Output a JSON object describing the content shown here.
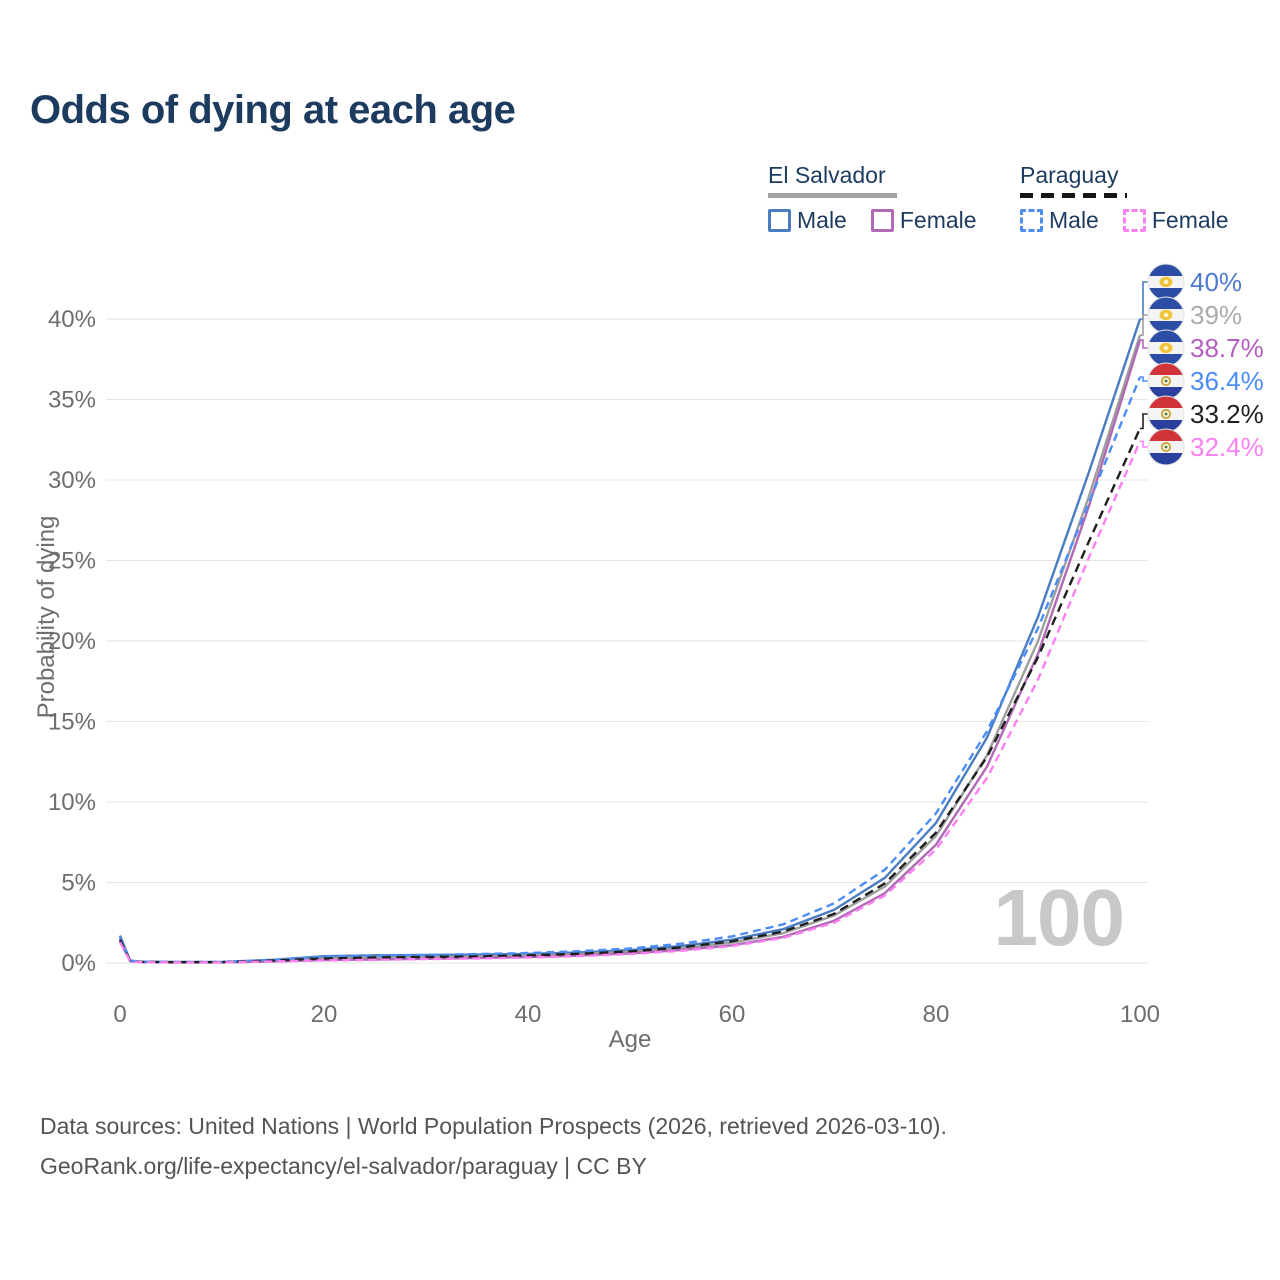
{
  "title": "Odds of dying at each age",
  "watermark": "100",
  "legend": {
    "groups": [
      {
        "label": "El Salvador",
        "line_color": "#a3a3a3",
        "line_style": "solid",
        "items": [
          {
            "label": "Male",
            "color": "#4a7cc2",
            "style": "solid"
          },
          {
            "label": "Female",
            "color": "#b069b5",
            "style": "solid"
          }
        ]
      },
      {
        "label": "Paraguay",
        "line_color": "#161616",
        "line_style": "dashed",
        "items": [
          {
            "label": "Male",
            "color": "#4d8df6",
            "style": "dashed"
          },
          {
            "label": "Female",
            "color": "#fb80f2",
            "style": "dashed"
          }
        ]
      }
    ]
  },
  "chart_data": {
    "type": "line",
    "title": "Odds of dying at each age",
    "xlabel": "Age",
    "ylabel": "Probability of dying",
    "xlim": [
      0,
      100
    ],
    "ylim_pct": [
      0,
      42
    ],
    "x_ticks": [
      0,
      20,
      40,
      60,
      80,
      100
    ],
    "y_ticks_pct": [
      0,
      5,
      10,
      15,
      20,
      25,
      30,
      35,
      40
    ],
    "grid": true,
    "legend_position": "top-right",
    "series": [
      {
        "id": "es-male",
        "country": "El Salvador",
        "series_key": "male",
        "color": "#4a7cc2",
        "dash": null,
        "end_value_pct": 40,
        "end_label": "40%",
        "label_color": "#4d79d0",
        "flag": "sv",
        "points": [
          [
            0,
            1.7
          ],
          [
            1,
            0.15
          ],
          [
            2,
            0.08
          ],
          [
            5,
            0.06
          ],
          [
            10,
            0.06
          ],
          [
            15,
            0.2
          ],
          [
            20,
            0.42
          ],
          [
            25,
            0.48
          ],
          [
            30,
            0.5
          ],
          [
            35,
            0.52
          ],
          [
            40,
            0.56
          ],
          [
            45,
            0.65
          ],
          [
            50,
            0.8
          ],
          [
            55,
            1.05
          ],
          [
            60,
            1.45
          ],
          [
            65,
            2.1
          ],
          [
            70,
            3.3
          ],
          [
            75,
            5.3
          ],
          [
            80,
            8.7
          ],
          [
            85,
            14.0
          ],
          [
            88,
            18.5
          ],
          [
            90,
            21.5
          ],
          [
            95,
            30.5
          ],
          [
            100,
            40
          ]
        ]
      },
      {
        "id": "es-all",
        "country": "El Salvador",
        "series_key": "all",
        "color": "#9e9e9e",
        "dash": null,
        "end_value_pct": 39,
        "end_label": "39%",
        "label_color": "#ababab",
        "flag": "sv",
        "points": [
          [
            0,
            1.5
          ],
          [
            1,
            0.13
          ],
          [
            2,
            0.07
          ],
          [
            5,
            0.05
          ],
          [
            10,
            0.05
          ],
          [
            15,
            0.15
          ],
          [
            20,
            0.3
          ],
          [
            25,
            0.36
          ],
          [
            30,
            0.38
          ],
          [
            35,
            0.41
          ],
          [
            40,
            0.46
          ],
          [
            45,
            0.55
          ],
          [
            50,
            0.7
          ],
          [
            55,
            0.92
          ],
          [
            60,
            1.27
          ],
          [
            65,
            1.85
          ],
          [
            70,
            2.95
          ],
          [
            75,
            4.75
          ],
          [
            80,
            7.9
          ],
          [
            85,
            12.9
          ],
          [
            90,
            20.0
          ],
          [
            95,
            29.0
          ],
          [
            100,
            39
          ]
        ]
      },
      {
        "id": "es-female",
        "country": "El Salvador",
        "series_key": "female",
        "color": "#b069b5",
        "dash": null,
        "end_value_pct": 38.7,
        "end_label": "38.7%",
        "label_color": "#b45ec0",
        "flag": "sv",
        "points": [
          [
            0,
            1.35
          ],
          [
            1,
            0.11
          ],
          [
            2,
            0.06
          ],
          [
            5,
            0.04
          ],
          [
            10,
            0.04
          ],
          [
            15,
            0.1
          ],
          [
            20,
            0.18
          ],
          [
            25,
            0.22
          ],
          [
            30,
            0.26
          ],
          [
            35,
            0.31
          ],
          [
            40,
            0.37
          ],
          [
            45,
            0.46
          ],
          [
            50,
            0.6
          ],
          [
            55,
            0.8
          ],
          [
            60,
            1.1
          ],
          [
            65,
            1.62
          ],
          [
            70,
            2.62
          ],
          [
            75,
            4.35
          ],
          [
            80,
            7.35
          ],
          [
            85,
            12.2
          ],
          [
            90,
            19.2
          ],
          [
            95,
            28.4
          ],
          [
            100,
            38.7
          ]
        ]
      },
      {
        "id": "py-male",
        "country": "Paraguay",
        "series_key": "male",
        "color": "#4d8df6",
        "dash": "8 5",
        "end_value_pct": 36.4,
        "end_label": "36.4%",
        "label_color": "#4b8cf7",
        "flag": "py",
        "points": [
          [
            0,
            1.6
          ],
          [
            1,
            0.14
          ],
          [
            2,
            0.08
          ],
          [
            5,
            0.06
          ],
          [
            10,
            0.07
          ],
          [
            15,
            0.2
          ],
          [
            20,
            0.4
          ],
          [
            25,
            0.46
          ],
          [
            30,
            0.5
          ],
          [
            35,
            0.55
          ],
          [
            40,
            0.62
          ],
          [
            45,
            0.73
          ],
          [
            50,
            0.9
          ],
          [
            55,
            1.2
          ],
          [
            60,
            1.65
          ],
          [
            65,
            2.4
          ],
          [
            70,
            3.7
          ],
          [
            75,
            5.8
          ],
          [
            80,
            9.3
          ],
          [
            85,
            14.4
          ],
          [
            90,
            20.8
          ],
          [
            95,
            28.6
          ],
          [
            100,
            36.4
          ]
        ]
      },
      {
        "id": "py-all",
        "country": "Paraguay",
        "series_key": "all",
        "color": "#1f1f1f",
        "dash": "9 5.5",
        "end_value_pct": 33.2,
        "end_label": "33.2%",
        "label_color": "#1f1f1f",
        "flag": "py",
        "points": [
          [
            0,
            1.45
          ],
          [
            1,
            0.12
          ],
          [
            2,
            0.07
          ],
          [
            5,
            0.05
          ],
          [
            10,
            0.05
          ],
          [
            15,
            0.15
          ],
          [
            20,
            0.28
          ],
          [
            25,
            0.34
          ],
          [
            30,
            0.37
          ],
          [
            35,
            0.41
          ],
          [
            40,
            0.47
          ],
          [
            45,
            0.57
          ],
          [
            50,
            0.72
          ],
          [
            55,
            0.97
          ],
          [
            60,
            1.35
          ],
          [
            65,
            1.95
          ],
          [
            70,
            3.05
          ],
          [
            75,
            4.95
          ],
          [
            80,
            8.1
          ],
          [
            85,
            12.8
          ],
          [
            90,
            19.0
          ],
          [
            95,
            26.2
          ],
          [
            100,
            33.2
          ]
        ]
      },
      {
        "id": "py-female",
        "country": "Paraguay",
        "series_key": "female",
        "color": "#fb80f2",
        "dash": "8 5",
        "end_value_pct": 32.4,
        "end_label": "32.4%",
        "label_color": "#fb80f2",
        "flag": "py",
        "points": [
          [
            0,
            1.3
          ],
          [
            1,
            0.1
          ],
          [
            2,
            0.05
          ],
          [
            5,
            0.04
          ],
          [
            10,
            0.04
          ],
          [
            15,
            0.1
          ],
          [
            20,
            0.16
          ],
          [
            25,
            0.2
          ],
          [
            30,
            0.24
          ],
          [
            35,
            0.28
          ],
          [
            40,
            0.34
          ],
          [
            45,
            0.43
          ],
          [
            50,
            0.56
          ],
          [
            55,
            0.76
          ],
          [
            60,
            1.05
          ],
          [
            65,
            1.55
          ],
          [
            70,
            2.5
          ],
          [
            75,
            4.2
          ],
          [
            80,
            7.05
          ],
          [
            85,
            11.5
          ],
          [
            90,
            17.6
          ],
          [
            95,
            25.2
          ],
          [
            100,
            32.4
          ]
        ]
      }
    ]
  },
  "flags": {
    "sv": {
      "name": "el-salvador-flag",
      "bands": [
        "#2b4da6",
        "#f4f4f4",
        "#2b4da6"
      ],
      "emblem": "#f0c33c",
      "emblem_inner": "#fdf3cd"
    },
    "py": {
      "name": "paraguay-flag",
      "bands": [
        "#d0343a",
        "#f4f4f4",
        "#2b3f9e"
      ],
      "emblem": "#c9a43d",
      "emblem_inner": "#f6f1df",
      "emblem_dot": "#4a7d35"
    }
  },
  "footer": {
    "line1": "Data sources: United Nations | World Population Prospects (2026, retrieved 2026-03-10).",
    "line2": "GeoRank.org/life-expectancy/el-salvador/paraguay | CC BY"
  }
}
